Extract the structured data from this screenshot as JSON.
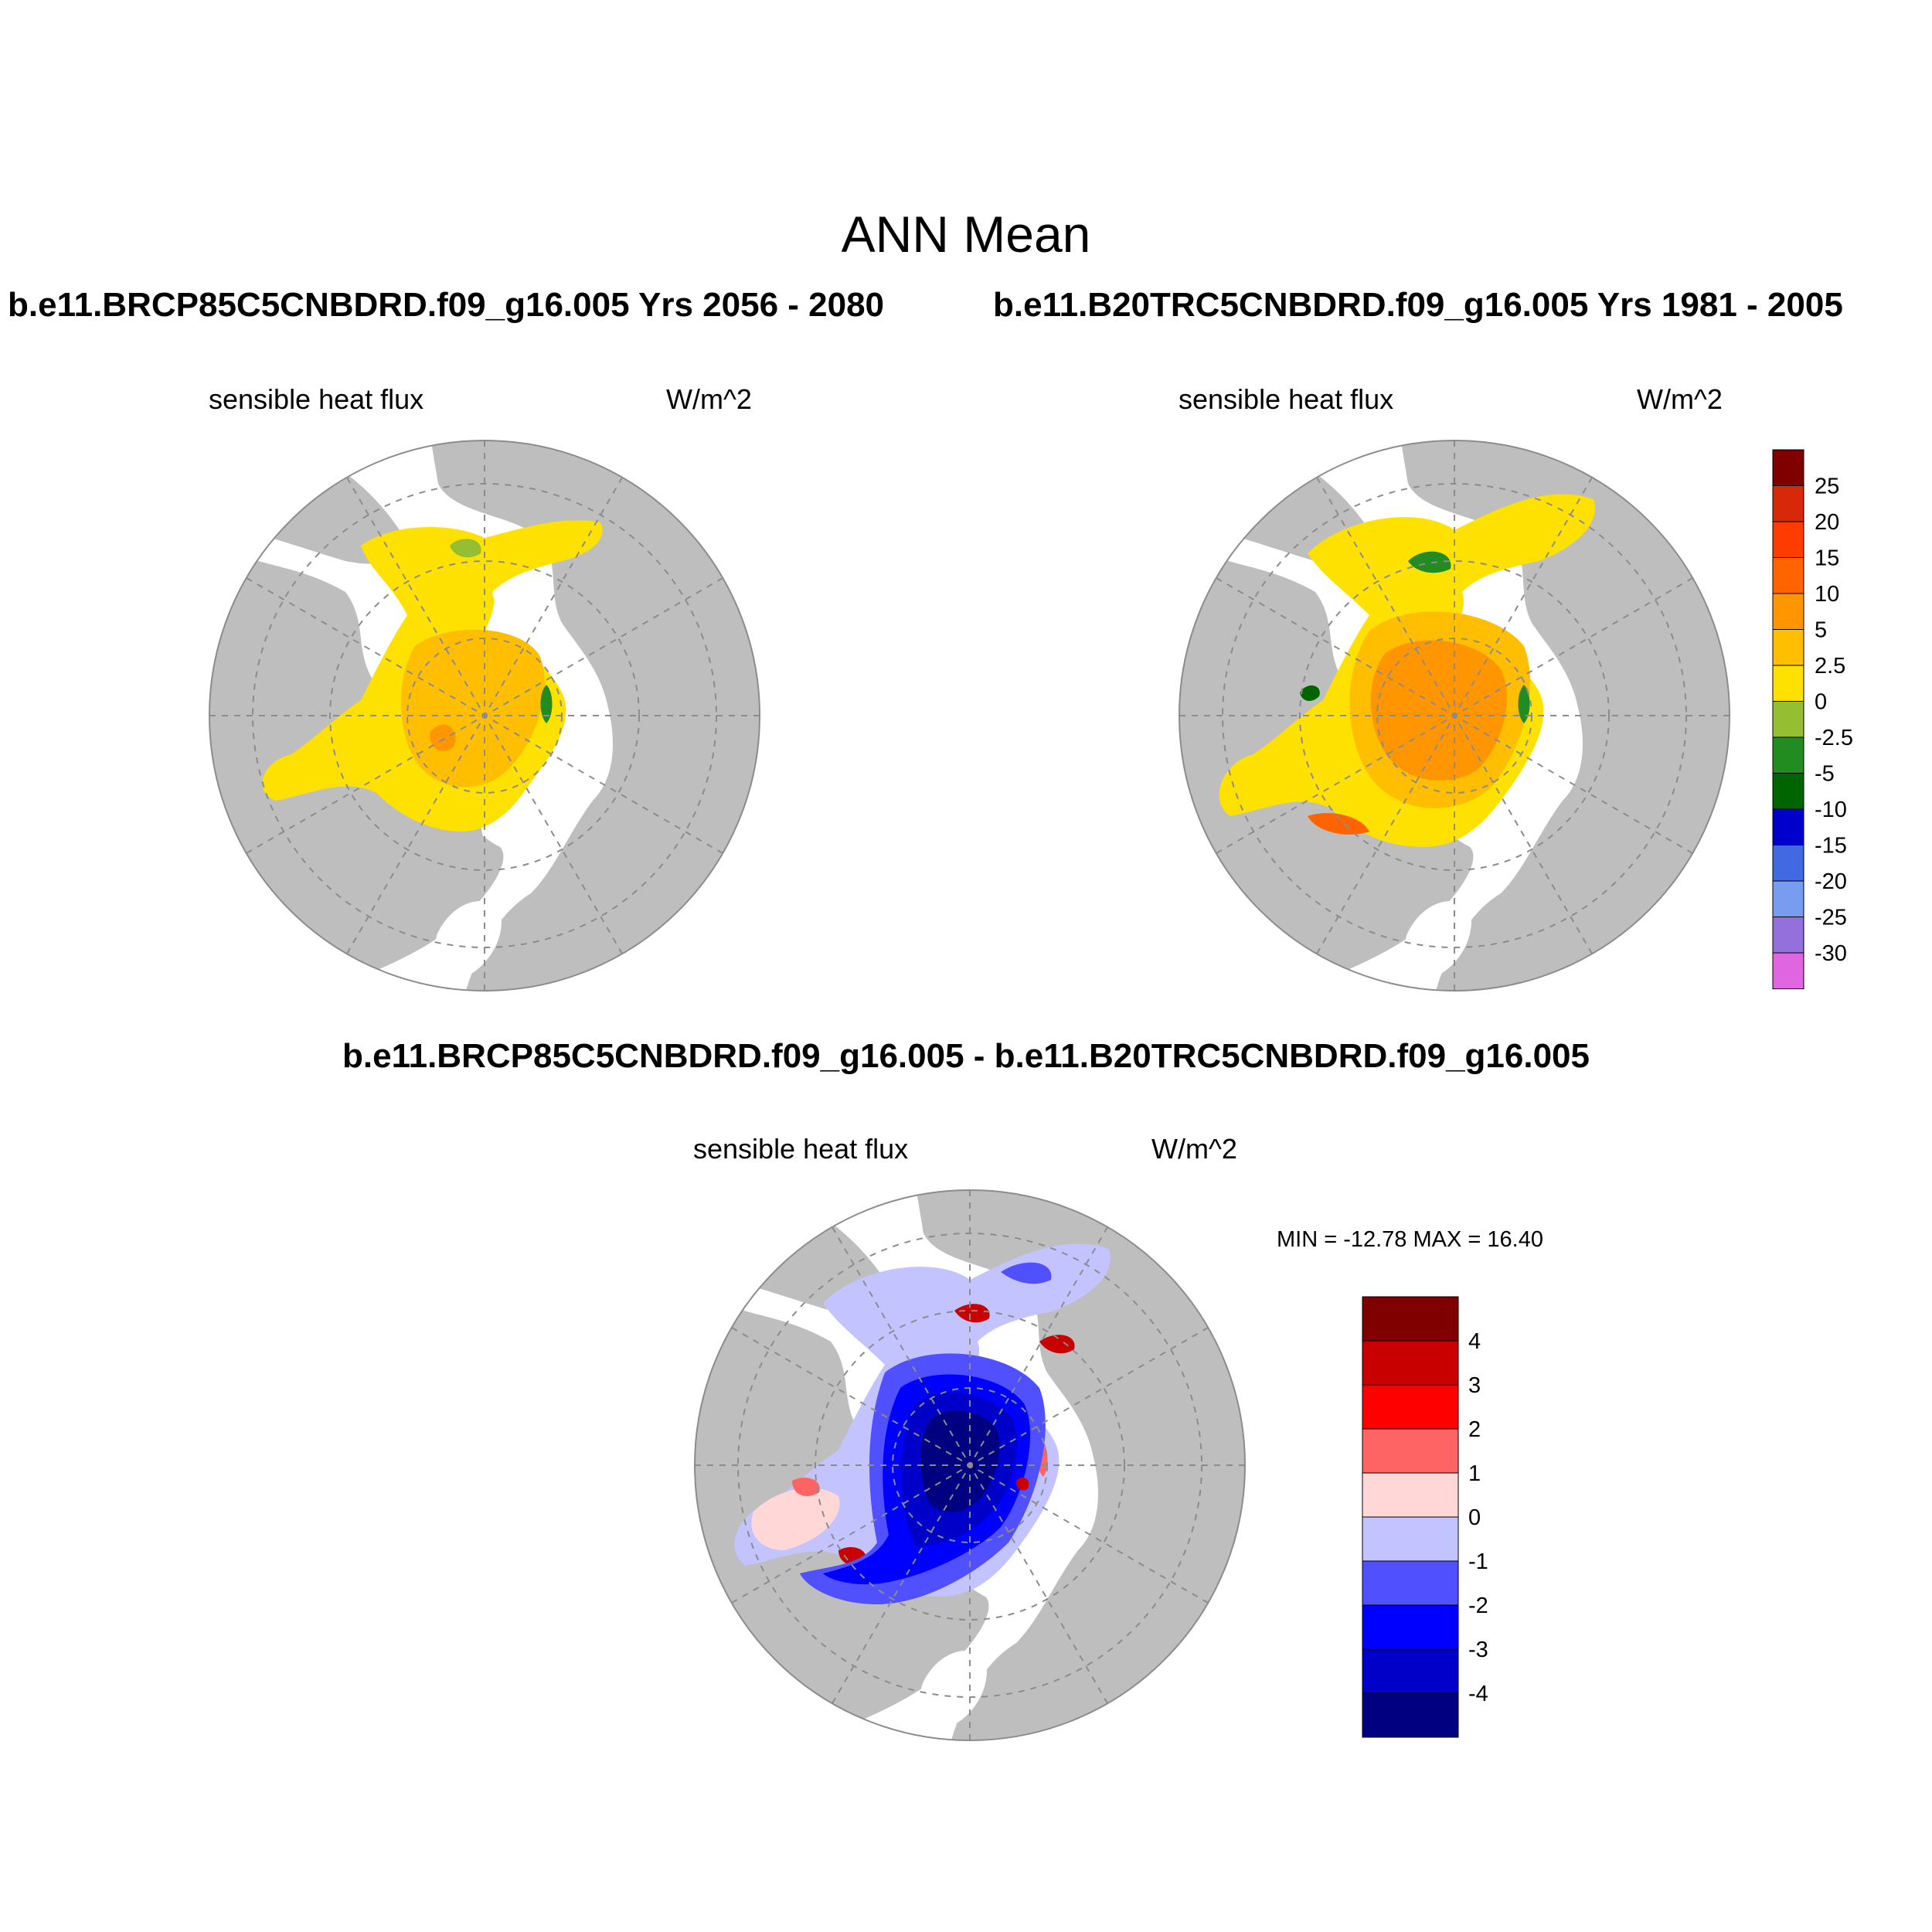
{
  "page": {
    "title": "ANN Mean",
    "case_left": "b.e11.BRCP85C5CNBDRD.f09_g16.005  Yrs 2056 - 2080",
    "case_right": "b.e11.B20TRC5CNBDRD.f09_g16.005  Yrs 1981 - 2005",
    "diff_title": "b.e11.BRCP85C5CNBDRD.f09_g16.005 - b.e11.B20TRC5CNBDRD.f09_g16.005"
  },
  "panels": [
    {
      "id": "future",
      "variable": "sensible heat flux",
      "units": "W/m^2"
    },
    {
      "id": "historical",
      "variable": "sensible heat flux",
      "units": "W/m^2"
    },
    {
      "id": "difference",
      "variable": "sensible heat flux",
      "units": "W/m^2",
      "stats": "MIN = -12.78 MAX =  16.40"
    }
  ],
  "colors": {
    "land": "#bebebe",
    "ocean_missing": "#ffffff",
    "grid": "#8c8c8c"
  },
  "colorbar_main": {
    "labels": [
      "25",
      "20",
      "15",
      "10",
      "5",
      "2.5",
      "0",
      "-2.5",
      "-5",
      "-10",
      "-15",
      "-20",
      "-25",
      "-30"
    ],
    "colors": [
      "#800000",
      "#d7280a",
      "#ff3c00",
      "#ff6400",
      "#ff9600",
      "#ffbe00",
      "#ffe100",
      "#96be32",
      "#228b22",
      "#006400",
      "#0000cd",
      "#4169e1",
      "#789cf0",
      "#9370db",
      "#e066e0"
    ]
  },
  "colorbar_diff": {
    "labels": [
      "4",
      "3",
      "2",
      "1",
      "0",
      "-1",
      "-2",
      "-3",
      "-4"
    ],
    "colors": [
      "#800000",
      "#c80000",
      "#ff0000",
      "#ff6464",
      "#ffd7d7",
      "#c3c3ff",
      "#5050ff",
      "#0000ff",
      "#0000c8",
      "#000080"
    ]
  }
}
